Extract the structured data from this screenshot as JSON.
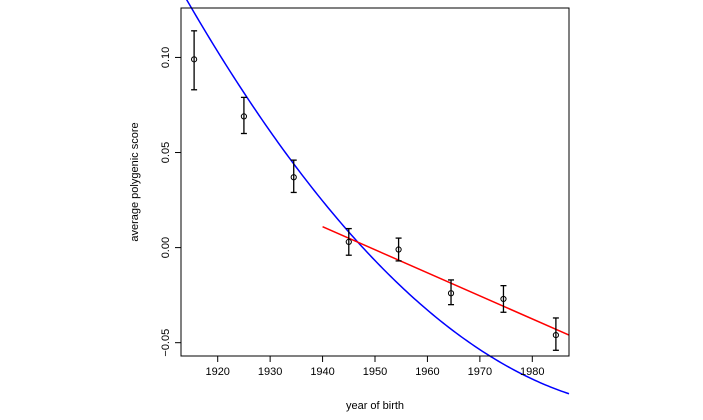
{
  "chart_data": {
    "type": "scatter",
    "xlabel": "year of birth",
    "ylabel": "average polygenic score",
    "xlim": [
      1913,
      1987
    ],
    "ylim": [
      -0.057,
      0.126
    ],
    "x_ticks": [
      1920,
      1930,
      1940,
      1950,
      1960,
      1970,
      1980
    ],
    "y_ticks": [
      0.1,
      0.05,
      0.0,
      -0.05
    ],
    "y_tick_labels": [
      "0.10",
      "0.05",
      "0.00",
      "−0.05"
    ],
    "grid": false,
    "points": [
      {
        "x": 1915.5,
        "y": 0.099,
        "lower": 0.083,
        "upper": 0.114
      },
      {
        "x": 1925.0,
        "y": 0.069,
        "lower": 0.06,
        "upper": 0.079
      },
      {
        "x": 1934.5,
        "y": 0.037,
        "lower": 0.029,
        "upper": 0.046
      },
      {
        "x": 1945.0,
        "y": 0.003,
        "lower": -0.004,
        "upper": 0.01
      },
      {
        "x": 1954.5,
        "y": -0.001,
        "lower": -0.007,
        "upper": 0.005
      },
      {
        "x": 1964.5,
        "y": -0.024,
        "lower": -0.03,
        "upper": -0.017
      },
      {
        "x": 1974.5,
        "y": -0.027,
        "lower": -0.034,
        "upper": -0.02
      },
      {
        "x": 1984.5,
        "y": -0.046,
        "lower": -0.054,
        "upper": -0.037
      }
    ],
    "fits": [
      {
        "type": "quadratic",
        "color": "#0000ff",
        "coefficients": {
          "x0": 1950,
          "a": -0.0068,
          "b": -0.00287,
          "c": 2.64e-05
        },
        "x_range": [
          1913,
          1987
        ]
      },
      {
        "type": "linear",
        "color": "#ff0000",
        "points": [
          [
            1940,
            0.011
          ],
          [
            1987,
            -0.046
          ]
        ]
      }
    ],
    "colors": {
      "points": "#000000",
      "axes": "#000000"
    }
  }
}
